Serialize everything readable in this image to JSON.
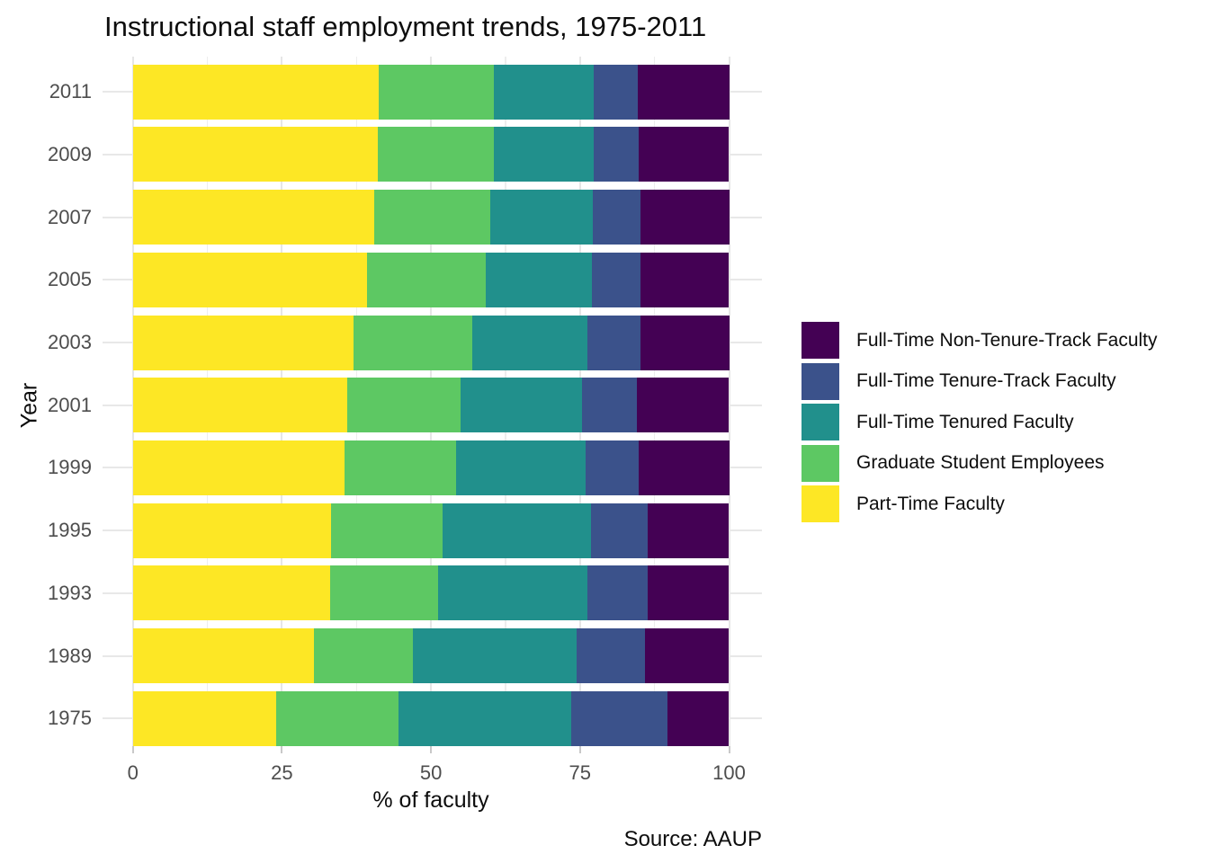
{
  "chart_data": {
    "type": "bar",
    "orientation": "horizontal",
    "stacked": true,
    "title": "Instructional staff employment trends, 1975-2011",
    "xlabel": "% of faculty",
    "ylabel": "Year",
    "caption": "Source: AAUP",
    "categories": [
      "2011",
      "2009",
      "2007",
      "2005",
      "2003",
      "2001",
      "1999",
      "1995",
      "1993",
      "1989",
      "1975"
    ],
    "xlim": [
      0,
      100
    ],
    "x_major_ticks": [
      0,
      25,
      50,
      75,
      100
    ],
    "x_minor_ticks": [
      12.5,
      37.5,
      62.5,
      87.5
    ],
    "grid": true,
    "legend_position": "right",
    "series": [
      {
        "name": "Part-Time Faculty",
        "color": "#FDE725",
        "values": [
          41.3,
          41.1,
          40.5,
          39.3,
          37.0,
          36.0,
          35.5,
          33.2,
          33.1,
          30.4,
          24.0
        ]
      },
      {
        "name": "Graduate Student Employees",
        "color": "#5DC863",
        "values": [
          19.3,
          19.4,
          19.5,
          19.9,
          20.0,
          19.0,
          18.7,
          18.8,
          18.1,
          16.5,
          20.5
        ]
      },
      {
        "name": "Full-Time Tenured Faculty",
        "color": "#21908C",
        "values": [
          16.7,
          16.8,
          17.2,
          17.8,
          19.3,
          20.3,
          21.8,
          24.8,
          25.0,
          27.6,
          29.0
        ]
      },
      {
        "name": "Full-Time Tenure-Track Faculty",
        "color": "#3B528B",
        "values": [
          7.4,
          7.6,
          8.0,
          8.2,
          8.8,
          9.2,
          8.9,
          9.6,
          10.2,
          11.4,
          16.1
        ]
      },
      {
        "name": "Full-Time Non-Tenure-Track Faculty",
        "color": "#440154",
        "values": [
          15.4,
          15.1,
          14.9,
          14.8,
          15.0,
          15.5,
          15.2,
          13.6,
          13.6,
          14.1,
          10.3
        ]
      }
    ],
    "legend_order": [
      "Full-Time Non-Tenure-Track Faculty",
      "Full-Time Tenure-Track Faculty",
      "Full-Time Tenured Faculty",
      "Graduate Student Employees",
      "Part-Time Faculty"
    ],
    "style_colors": {
      "background": "#FFFFFF",
      "axis_text": "#4D4D4D",
      "text": "#0D0D0D",
      "grid_major_v": "#E6E6E6",
      "grid_minor_v": "#EDEDED",
      "grid_major_h": "#E8E8E8",
      "tick_mark": "#C9C9C9"
    }
  }
}
